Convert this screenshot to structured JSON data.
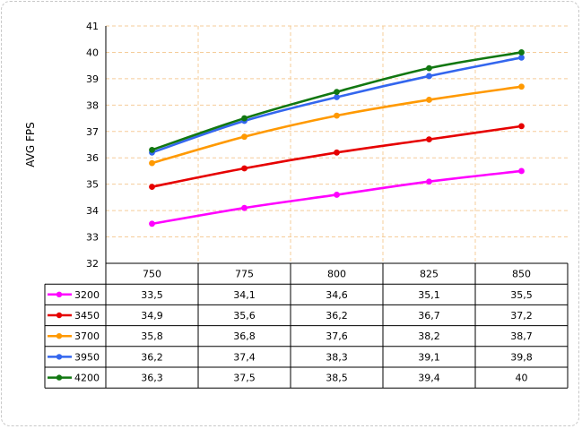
{
  "chart_data": {
    "type": "line",
    "ylabel": "AVG FPS",
    "xlabel": "",
    "title": "",
    "ylim": [
      32,
      41
    ],
    "y_ticks": [
      32,
      33,
      34,
      35,
      36,
      37,
      38,
      39,
      40,
      41
    ],
    "categories": [
      "750",
      "775",
      "800",
      "825",
      "850"
    ],
    "grid": "on",
    "legend": "data table rows",
    "series": [
      {
        "name": "3200",
        "color": "#ff00ff",
        "values": [
          33.5,
          34.1,
          34.6,
          35.1,
          35.5
        ],
        "labels": [
          "33,5",
          "34,1",
          "34,6",
          "35,1",
          "35,5"
        ]
      },
      {
        "name": "3450",
        "color": "#e60000",
        "values": [
          34.9,
          35.6,
          36.2,
          36.7,
          37.2
        ],
        "labels": [
          "34,9",
          "35,6",
          "36,2",
          "36,7",
          "37,2"
        ]
      },
      {
        "name": "3700",
        "color": "#ff9900",
        "values": [
          35.8,
          36.8,
          37.6,
          38.2,
          38.7
        ],
        "labels": [
          "35,8",
          "36,8",
          "37,6",
          "38,2",
          "38,7"
        ]
      },
      {
        "name": "3950",
        "color": "#3366ee",
        "values": [
          36.2,
          37.4,
          38.3,
          39.1,
          39.8
        ],
        "labels": [
          "36,2",
          "37,4",
          "38,3",
          "39,1",
          "39,8"
        ]
      },
      {
        "name": "4200",
        "color": "#117711",
        "values": [
          36.3,
          37.5,
          38.5,
          39.4,
          40.0
        ],
        "labels": [
          "36,3",
          "37,5",
          "38,5",
          "39,4",
          "40"
        ]
      }
    ]
  }
}
